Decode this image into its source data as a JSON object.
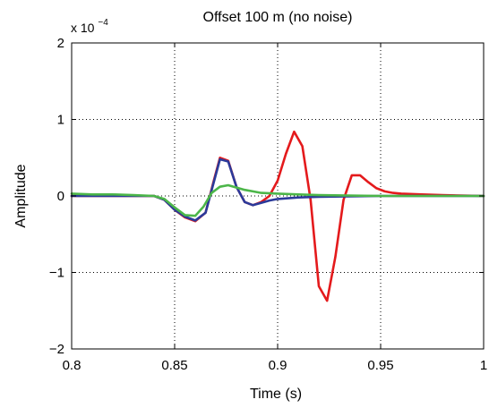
{
  "chart_data": {
    "type": "line",
    "title": "Offset 100 m (no noise)",
    "xlabel": "Time (s)",
    "ylabel": "Amplitude",
    "y_exponent_base": "x 10",
    "y_exponent_power": "−4",
    "xlim": [
      0.8,
      1.0
    ],
    "ylim": [
      -2,
      2
    ],
    "grid": true,
    "x_ticks": [
      0.8,
      0.85,
      0.9,
      0.95,
      1.0
    ],
    "x_tick_labels": [
      "0.8",
      "0.85",
      "0.9",
      "0.95",
      "1"
    ],
    "y_ticks": [
      -2,
      -1,
      0,
      1,
      2
    ],
    "y_tick_labels": [
      "−2",
      "−1",
      "0",
      "1",
      "2"
    ],
    "series": [
      {
        "color": "#e41a1c",
        "x": [
          0.8,
          0.81,
          0.82,
          0.83,
          0.84,
          0.845,
          0.85,
          0.855,
          0.86,
          0.865,
          0.869,
          0.872,
          0.876,
          0.88,
          0.884,
          0.888,
          0.892,
          0.896,
          0.9,
          0.904,
          0.908,
          0.912,
          0.916,
          0.92,
          0.924,
          0.928,
          0.932,
          0.936,
          0.94,
          0.944,
          0.948,
          0.952,
          0.956,
          0.96,
          0.97,
          0.98,
          1.0
        ],
        "y": [
          0.0,
          0.0,
          0.0,
          0.0,
          0.0,
          -0.05,
          -0.18,
          -0.28,
          -0.33,
          -0.22,
          0.2,
          0.5,
          0.46,
          0.12,
          -0.08,
          -0.12,
          -0.08,
          0.0,
          0.2,
          0.55,
          0.84,
          0.65,
          -0.05,
          -1.18,
          -1.37,
          -0.8,
          -0.05,
          0.27,
          0.27,
          0.18,
          0.1,
          0.06,
          0.04,
          0.03,
          0.02,
          0.01,
          0.0
        ]
      },
      {
        "color": "#2b3a9a",
        "x": [
          0.8,
          0.81,
          0.82,
          0.83,
          0.84,
          0.845,
          0.85,
          0.855,
          0.86,
          0.865,
          0.869,
          0.872,
          0.876,
          0.88,
          0.884,
          0.888,
          0.892,
          0.896,
          0.9,
          0.91,
          0.92,
          0.95,
          1.0
        ],
        "y": [
          0.0,
          0.0,
          0.0,
          0.0,
          0.0,
          -0.05,
          -0.18,
          -0.27,
          -0.32,
          -0.22,
          0.18,
          0.48,
          0.45,
          0.12,
          -0.08,
          -0.12,
          -0.09,
          -0.06,
          -0.04,
          -0.02,
          -0.01,
          0.0,
          0.0
        ]
      },
      {
        "color": "#4cb649",
        "x": [
          0.8,
          0.81,
          0.82,
          0.83,
          0.84,
          0.845,
          0.85,
          0.855,
          0.86,
          0.864,
          0.868,
          0.872,
          0.876,
          0.88,
          0.884,
          0.888,
          0.892,
          0.9,
          0.91,
          0.92,
          0.95,
          1.0
        ],
        "y": [
          0.03,
          0.02,
          0.02,
          0.01,
          0.0,
          -0.04,
          -0.15,
          -0.25,
          -0.26,
          -0.14,
          0.04,
          0.12,
          0.14,
          0.11,
          0.08,
          0.06,
          0.04,
          0.03,
          0.02,
          0.01,
          0.0,
          0.0
        ]
      }
    ]
  }
}
